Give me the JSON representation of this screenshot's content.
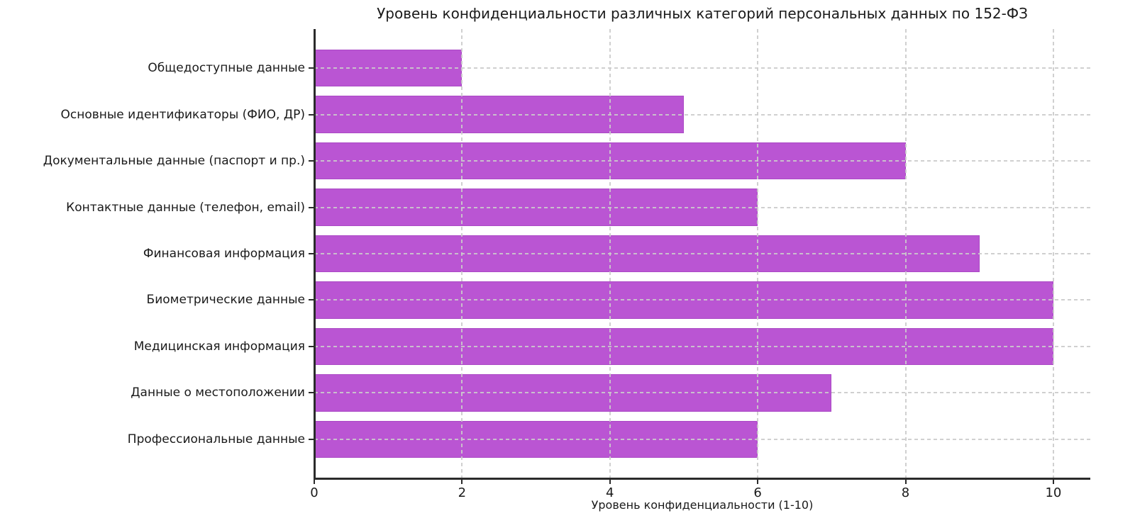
{
  "chart_data": {
    "type": "bar",
    "orientation": "horizontal",
    "title": "Уровень конфиденциальности различных категорий персональных данных по 152-ФЗ",
    "xlabel": "Уровень конфиденциальности (1-10)",
    "categories": [
      "Общедоступные данные",
      "Основные идентификаторы (ФИО, ДР)",
      "Документальные данные (паспорт и пр.)",
      "Контактные данные (телефон, email)",
      "Финансовая информация",
      "Биометрические данные",
      "Медицинская информация",
      "Данные о местоположении",
      "Профессиональные данные"
    ],
    "values": [
      2,
      5,
      8,
      6,
      9,
      10,
      10,
      7,
      6
    ],
    "xlim": [
      0,
      10.5
    ],
    "xticks": [
      0,
      2,
      4,
      6,
      8,
      10
    ],
    "grid": "dashed-both-axes",
    "legend": "none",
    "colors": {
      "bar_fill": "#ba55d3",
      "bar_edge": "#9d44b8",
      "grid": "#cbcbcb",
      "spine": "#2b2b2b",
      "text": "#1a1a1a",
      "background": "#ffffff"
    }
  }
}
